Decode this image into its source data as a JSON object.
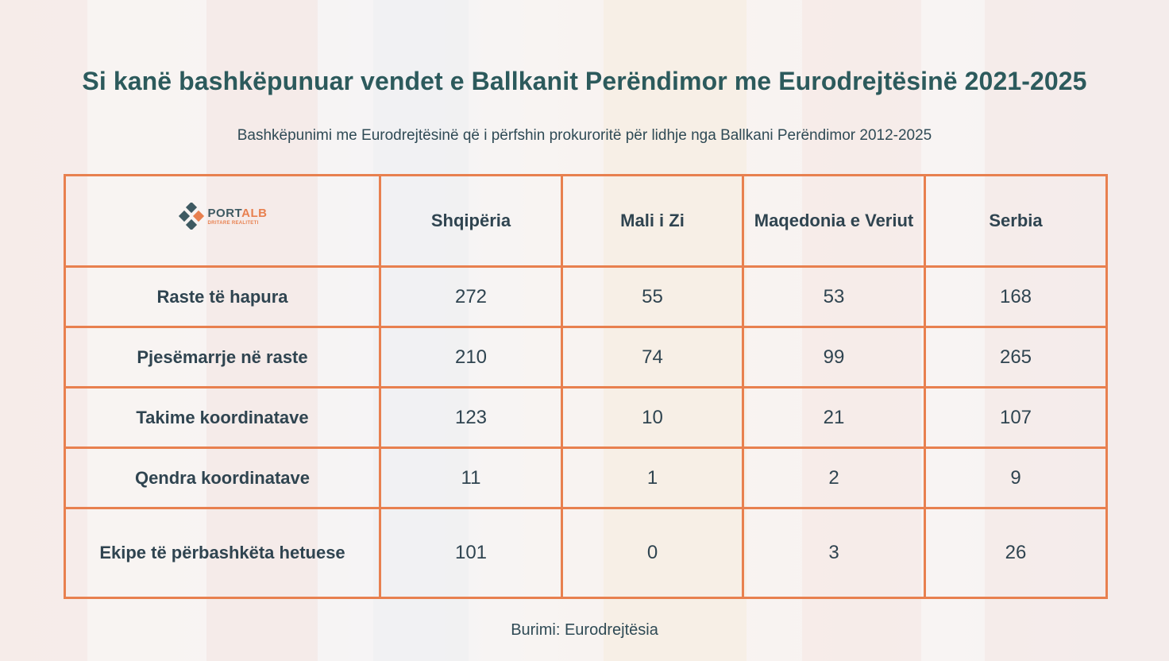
{
  "title": "Si kanë bashkëpunuar vendet e Ballkanit Perëndimor me Eurodrejtësinë 2021-2025",
  "subtitle": "Bashkëpunimi me Eurodrejtësinë që i përfshin prokuroritë për lidhje nga Ballkani Perëndimor 2012-2025",
  "logo": {
    "name_part1": "PORT",
    "name_part2": "ALB",
    "tagline": "DRITARE REALITETI"
  },
  "source": "Burimi: Eurodrejtësia",
  "colors": {
    "title": "#2c5a5c",
    "border": "#e8804f",
    "text": "#2f4450",
    "accent": "#e8804f"
  },
  "chart_data": {
    "type": "table",
    "columns": [
      "Shqipëria",
      "Mali i Zi",
      "Maqedonia e Veriut",
      "Serbia"
    ],
    "rows": [
      {
        "label": "Raste të hapura",
        "values": [
          "272",
          "55",
          "53",
          "168"
        ]
      },
      {
        "label": "Pjesëmarrje në raste",
        "values": [
          "210",
          "74",
          "99",
          "265"
        ]
      },
      {
        "label": "Takime koordinatave",
        "values": [
          "123",
          "10",
          "21",
          "107"
        ]
      },
      {
        "label": "Qendra koordinatave",
        "values": [
          "11",
          "1",
          "2",
          "9"
        ]
      },
      {
        "label": "Ekipe të përbashkëta hetuese",
        "values": [
          "101",
          "0",
          "3",
          "26"
        ]
      }
    ]
  }
}
